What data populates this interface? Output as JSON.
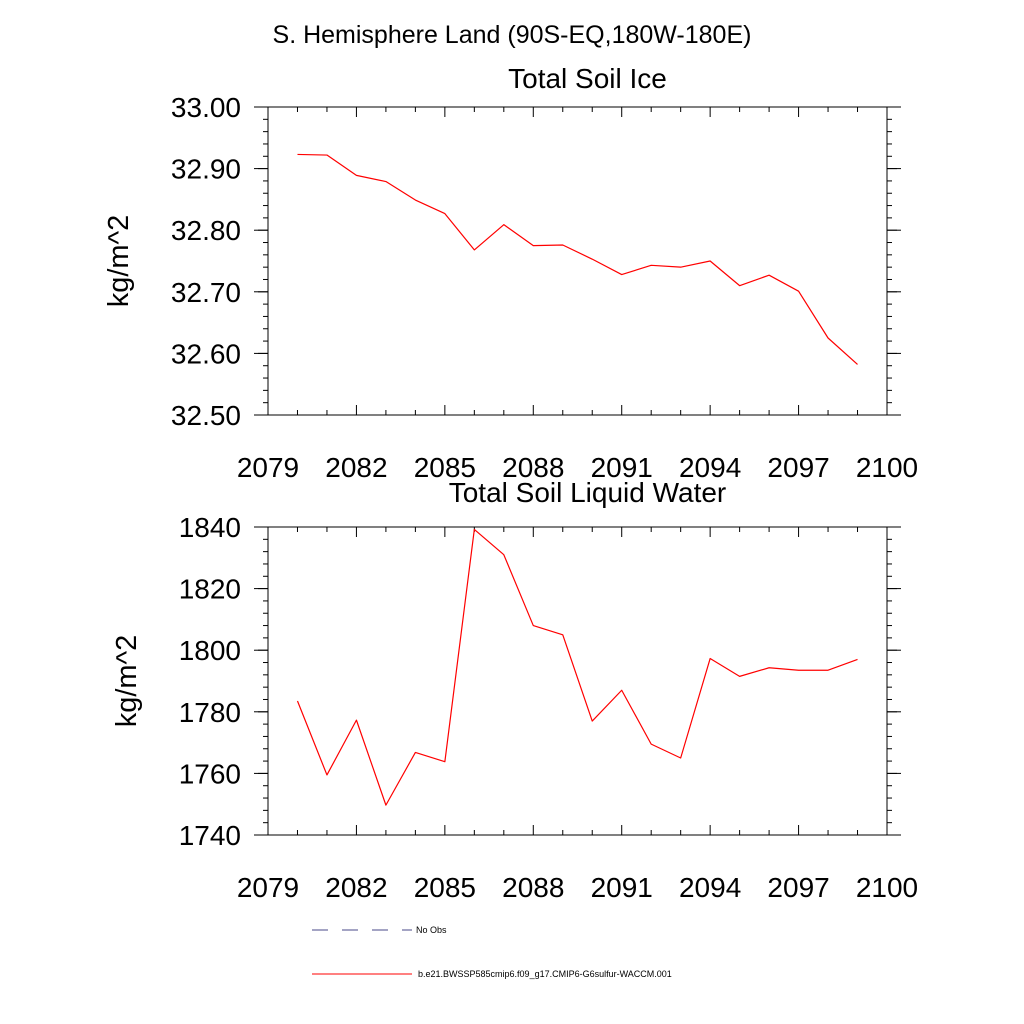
{
  "figure": {
    "title": "S. Hemisphere Land (90S-EQ,180W-180E)"
  },
  "chart_data": [
    {
      "type": "line",
      "title": "Total Soil Ice",
      "xlabel": "",
      "ylabel": "kg/m^2",
      "xlim": [
        2079,
        2100
      ],
      "ylim": [
        32.5,
        33.0
      ],
      "x_ticks": [
        2079,
        2082,
        2085,
        2088,
        2091,
        2094,
        2097,
        2100
      ],
      "x_tick_labels": [
        "2079",
        "2082",
        "2085",
        "2088",
        "2091",
        "2094",
        "2097",
        "2100"
      ],
      "y_ticks": [
        32.5,
        32.6,
        32.7,
        32.8,
        32.9,
        33.0
      ],
      "y_tick_labels": [
        "32.50",
        "32.60",
        "32.70",
        "32.80",
        "32.90",
        "33.00"
      ],
      "grid": false,
      "series": [
        {
          "name": "b.e21.BWSSP585cmip6.f09_g17.CMIP6-G6sulfur-WACCM.001",
          "color": "#ff0000",
          "x": [
            2080,
            2081,
            2082,
            2083,
            2084,
            2085,
            2086,
            2087,
            2088,
            2089,
            2090,
            2091,
            2092,
            2093,
            2094,
            2095,
            2096,
            2097,
            2098,
            2099
          ],
          "values": [
            32.923,
            32.922,
            32.889,
            32.879,
            32.849,
            32.827,
            32.768,
            32.809,
            32.775,
            32.776,
            32.753,
            32.728,
            32.743,
            32.74,
            32.75,
            32.71,
            32.727,
            32.701,
            32.625,
            32.582
          ]
        }
      ]
    },
    {
      "type": "line",
      "title": "Total Soil Liquid Water",
      "xlabel": "",
      "ylabel": "kg/m^2",
      "xlim": [
        2079,
        2100
      ],
      "ylim": [
        1740,
        1840
      ],
      "x_ticks": [
        2079,
        2082,
        2085,
        2088,
        2091,
        2094,
        2097,
        2100
      ],
      "x_tick_labels": [
        "2079",
        "2082",
        "2085",
        "2088",
        "2091",
        "2094",
        "2097",
        "2100"
      ],
      "y_ticks": [
        1740,
        1760,
        1780,
        1800,
        1820,
        1840
      ],
      "y_tick_labels": [
        "1740",
        "1760",
        "1780",
        "1800",
        "1820",
        "1840"
      ],
      "grid": false,
      "series": [
        {
          "name": "b.e21.BWSSP585cmip6.f09_g17.CMIP6-G6sulfur-WACCM.001",
          "color": "#ff0000",
          "x": [
            2080,
            2081,
            2082,
            2083,
            2084,
            2085,
            2086,
            2087,
            2088,
            2089,
            2090,
            2091,
            2092,
            2093,
            2094,
            2095,
            2096,
            2097,
            2098,
            2099
          ],
          "values": [
            1783.5,
            1759.5,
            1777.3,
            1749.7,
            1766.8,
            1763.8,
            1839.2,
            1831.0,
            1808.0,
            1805.0,
            1777.0,
            1787.0,
            1769.5,
            1765.0,
            1797.3,
            1791.5,
            1794.3,
            1793.5,
            1793.5,
            1797.0
          ]
        }
      ]
    }
  ],
  "legend": {
    "placement": "bottom",
    "items": [
      {
        "label": "No Obs",
        "color": "#4a4a8a",
        "style": "dashed"
      },
      {
        "label": "b.e21.BWSSP585cmip6.f09_g17.CMIP6-G6sulfur-WACCM.001",
        "color": "#ff0000",
        "style": "solid"
      }
    ]
  }
}
